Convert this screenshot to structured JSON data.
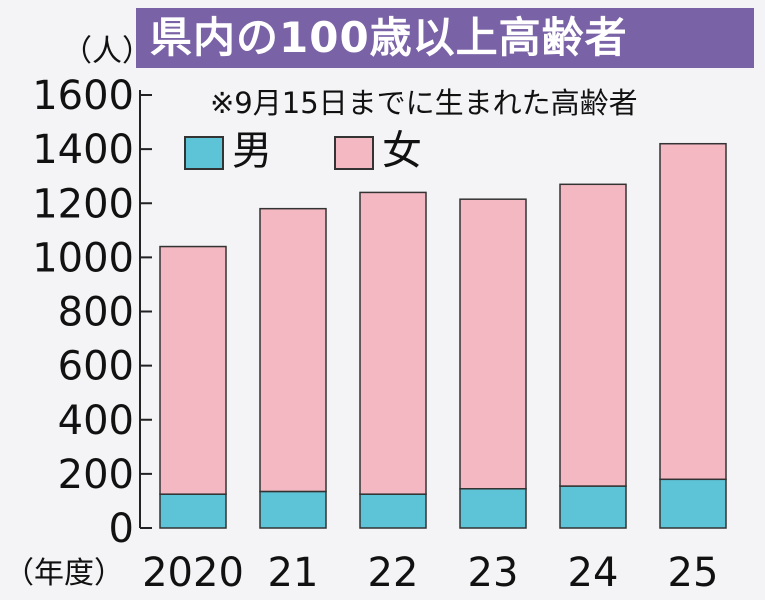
{
  "chart_data": {
    "type": "bar",
    "stacked": true,
    "title": "県内の100歳以上高齢者",
    "subtitle": "※9月15日までに生まれた高齢者",
    "ylabel": "（人）",
    "xlabel": "（年度）",
    "categories": [
      "2020",
      "21",
      "22",
      "23",
      "24",
      "25"
    ],
    "series": [
      {
        "name": "男",
        "color": "#5cc4d6",
        "values": [
          125,
          135,
          125,
          145,
          155,
          180
        ]
      },
      {
        "name": "女",
        "color": "#f3b8c1",
        "values": [
          915,
          1045,
          1115,
          1070,
          1115,
          1240
        ]
      }
    ],
    "ylim": [
      0,
      1600
    ],
    "yticks": [
      0,
      200,
      400,
      600,
      800,
      1000,
      1200,
      1400,
      1600
    ],
    "grid": false,
    "legend": "top-left"
  }
}
